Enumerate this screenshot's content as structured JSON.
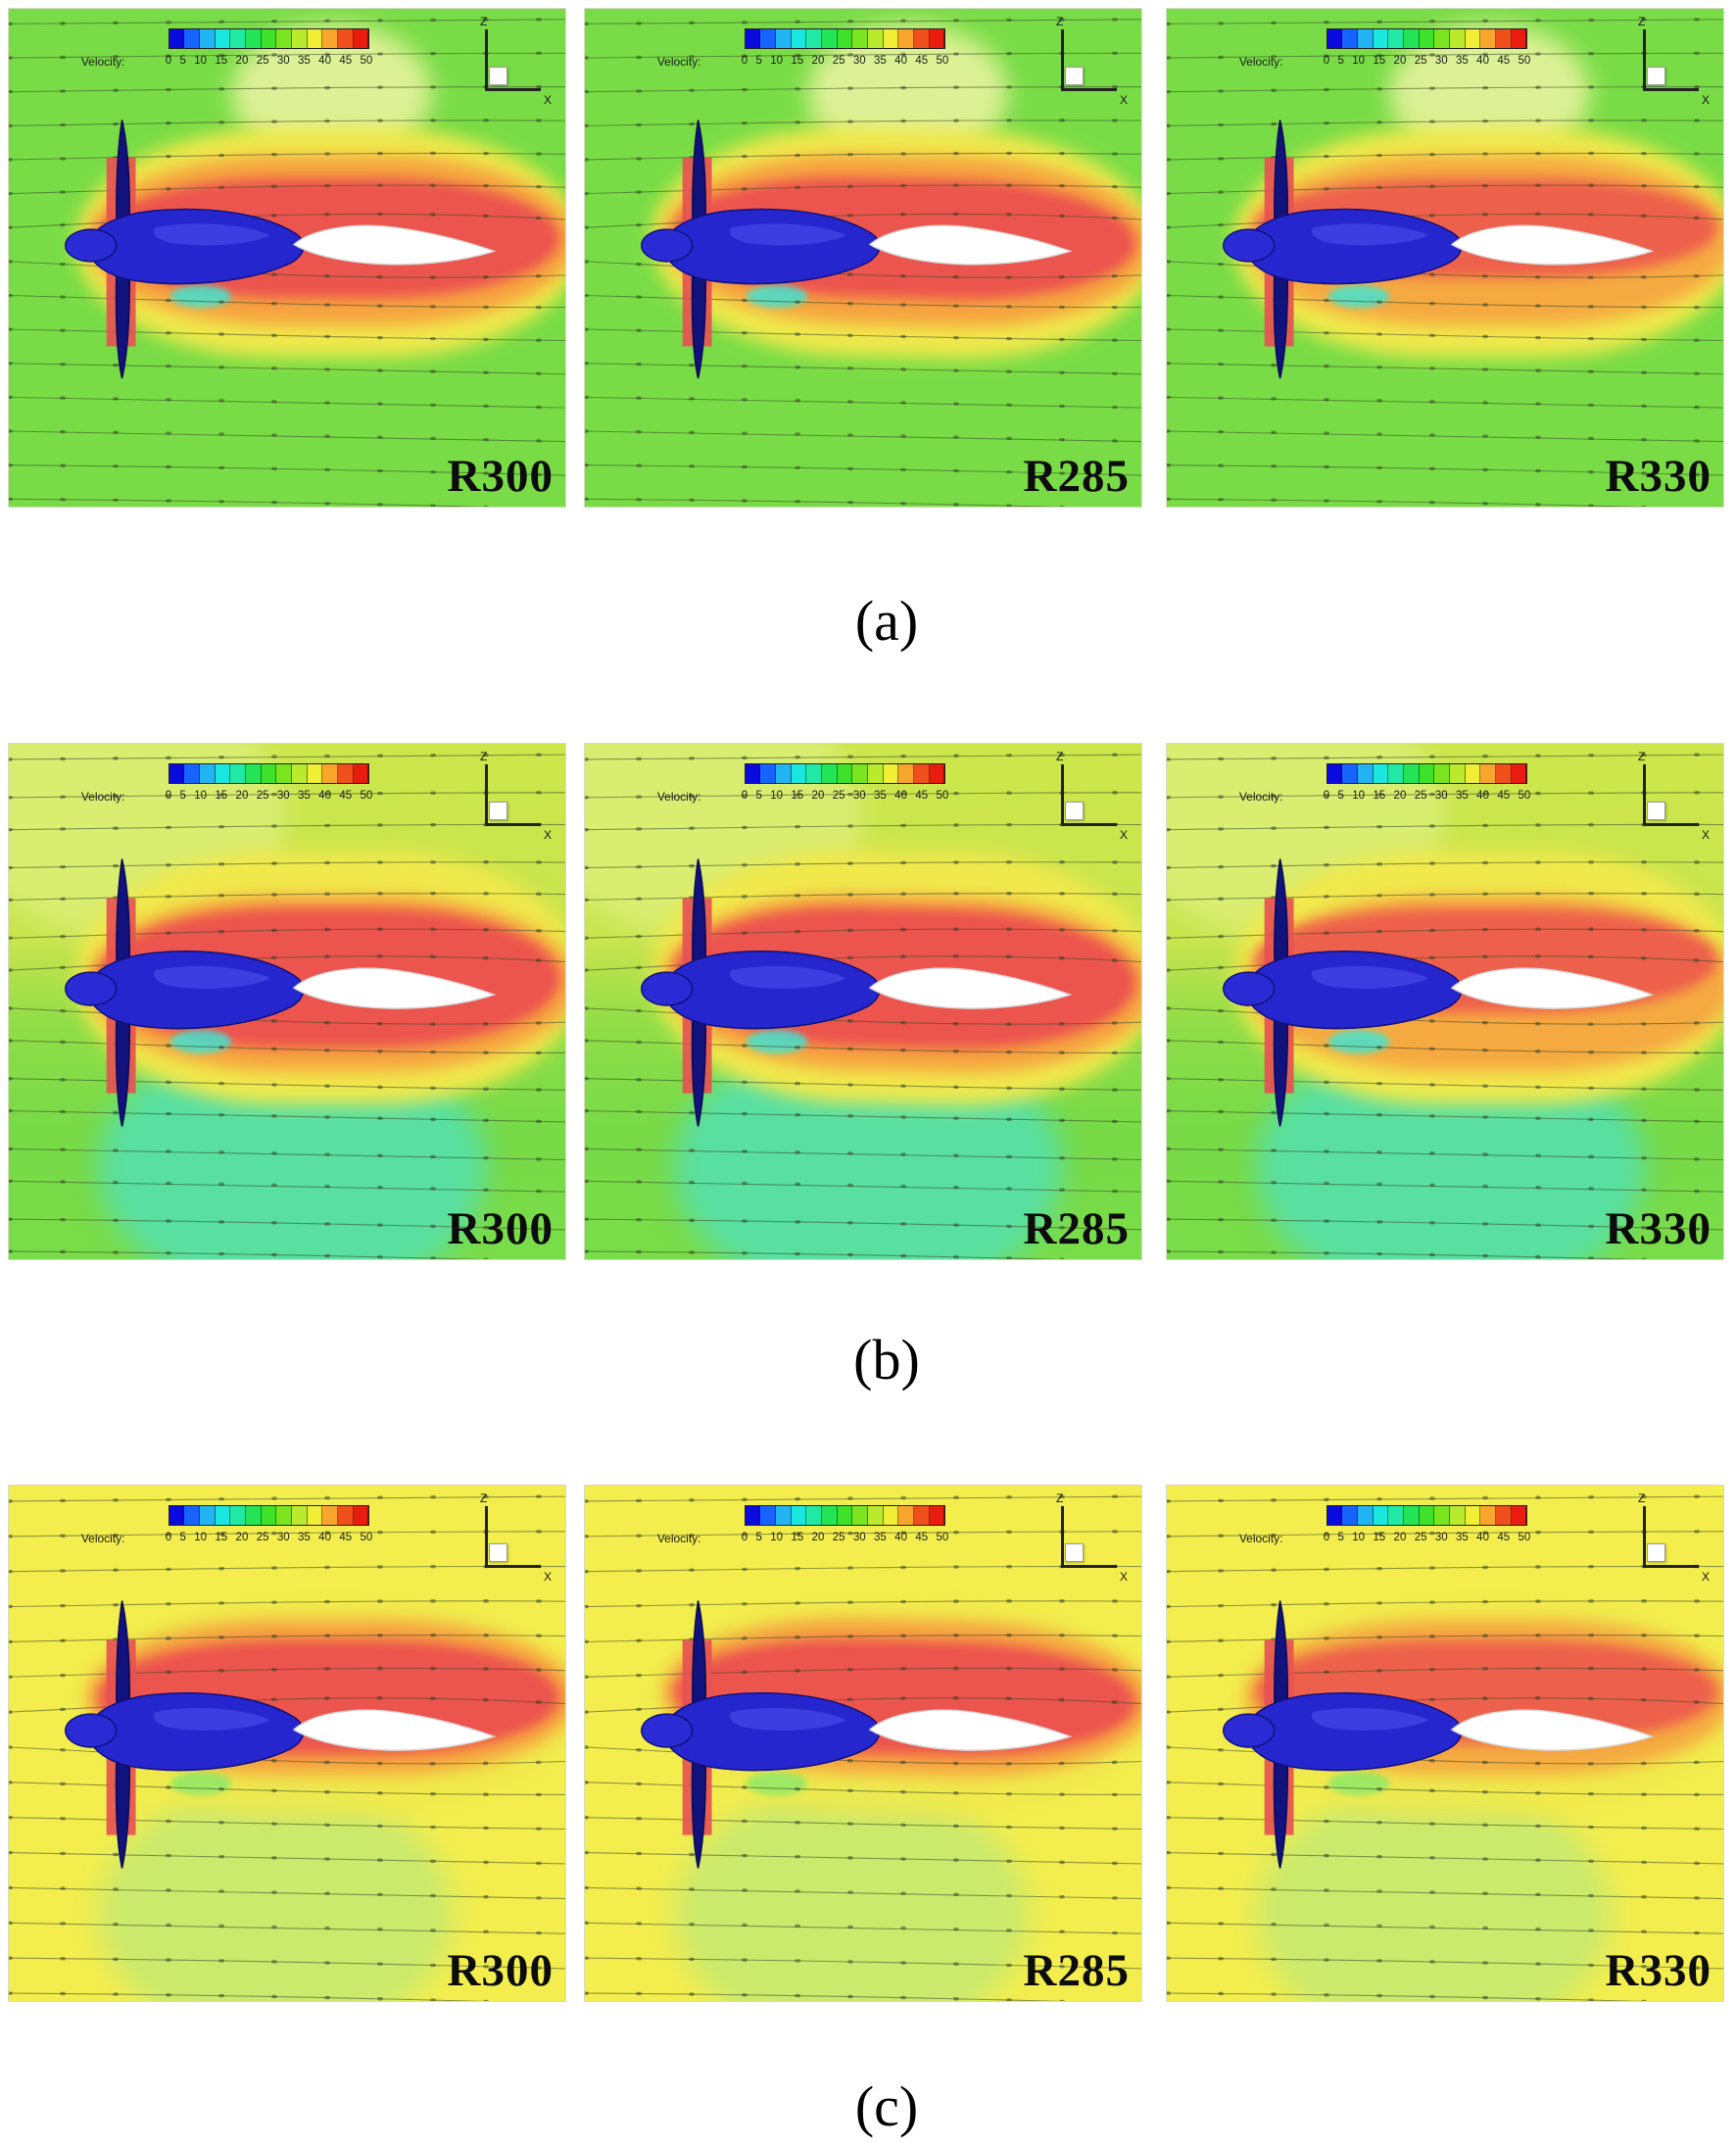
{
  "figure": {
    "colorbar": {
      "label": "Velocity:",
      "ticks": [
        "0",
        "5",
        "10",
        "15",
        "20",
        "25",
        "30",
        "35",
        "40",
        "45",
        "50"
      ],
      "segment_colors": [
        "#0a0adf",
        "#1763ff",
        "#22b4f2",
        "#19e7e0",
        "#1fe9a3",
        "#23e356",
        "#3fe22a",
        "#7ae51f",
        "#b9ea2e",
        "#f0ee35",
        "#f8a62b",
        "#ef4f1b",
        "#e91c0f"
      ]
    },
    "axes": {
      "vertical": "Z",
      "horizontal": "X"
    },
    "rows": [
      {
        "caption": "(a)",
        "panels": [
          {
            "label": "R300"
          },
          {
            "label": "R285"
          },
          {
            "label": "R330"
          }
        ]
      },
      {
        "caption": "(b)",
        "panels": [
          {
            "label": "R300"
          },
          {
            "label": "R285"
          },
          {
            "label": "R330"
          }
        ]
      },
      {
        "caption": "(c)",
        "panels": [
          {
            "label": "R300"
          },
          {
            "label": "R285"
          },
          {
            "label": "R330"
          }
        ]
      }
    ]
  }
}
